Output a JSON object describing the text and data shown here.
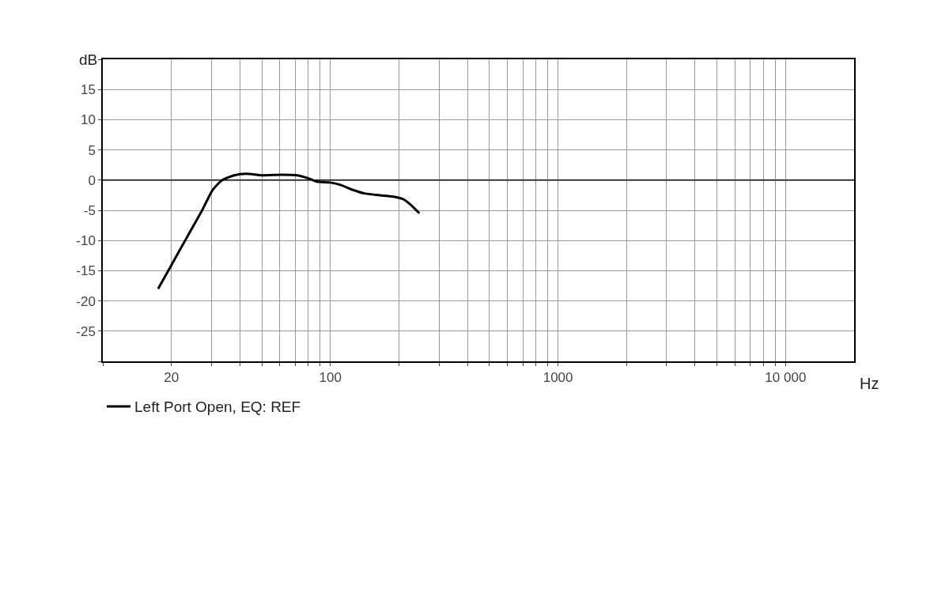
{
  "chart_data": {
    "type": "line",
    "xlabel": "Hz",
    "ylabel": "dB",
    "log": "x",
    "x": [
      17.5,
      20,
      23.4,
      27.4,
      30.4,
      33.5,
      37.8,
      42.6,
      50,
      61,
      71.5,
      80.6,
      87.3,
      100,
      110.9,
      125,
      141,
      165,
      194,
      210,
      227,
      246
    ],
    "series": [
      {
        "name": "Left Port Open, EQ: REF",
        "color": "#000000",
        "values": [
          -18.0,
          -14.1,
          -9.5,
          -4.9,
          -1.6,
          0,
          0.8,
          1.05,
          0.8,
          0.9,
          0.8,
          0.26,
          -0.26,
          -0.4,
          -0.8,
          -1.6,
          -2.2,
          -2.5,
          -2.8,
          -3.2,
          -4.2,
          -5.5
        ]
      }
    ],
    "xlim": [
      10,
      20000
    ],
    "xticks": [
      {
        "value": 10,
        "label": null
      },
      20,
      {
        "value": 30,
        "label": null
      },
      {
        "value": 40,
        "label": null
      },
      {
        "value": 50,
        "label": null
      },
      {
        "value": 60,
        "label": null
      },
      {
        "value": 70,
        "label": null
      },
      {
        "value": 80,
        "label": null
      },
      {
        "value": 90,
        "label": null
      },
      100,
      {
        "value": 200,
        "label": null
      },
      {
        "value": 300,
        "label": null
      },
      {
        "value": 400,
        "label": null
      },
      {
        "value": 500,
        "label": null
      },
      {
        "value": 600,
        "label": null
      },
      {
        "value": 700,
        "label": null
      },
      {
        "value": 800,
        "label": null
      },
      {
        "value": 900,
        "label": null
      },
      1000,
      {
        "value": 2000,
        "label": null
      },
      {
        "value": 3000,
        "label": null
      },
      {
        "value": 4000,
        "label": null
      },
      {
        "value": 5000,
        "label": null
      },
      {
        "value": 6000,
        "label": null
      },
      {
        "value": 7000,
        "label": null
      },
      {
        "value": 8000,
        "label": null
      },
      {
        "value": 9000,
        "label": null
      },
      {
        "value": 10000,
        "label": "10 000"
      }
    ],
    "ylim": [
      -30,
      20
    ],
    "yticks": [
      {
        "value": -30,
        "label": null
      },
      -25,
      -20,
      -15,
      -10,
      -5,
      0,
      5,
      10,
      15,
      {
        "value": 20,
        "label": null
      }
    ],
    "ref_lines": [
      {
        "axis": "y",
        "value": 0,
        "color": "#000000"
      }
    ],
    "grid": true,
    "legend": "bottom left",
    "line_style": "solid",
    "marker": "none"
  }
}
